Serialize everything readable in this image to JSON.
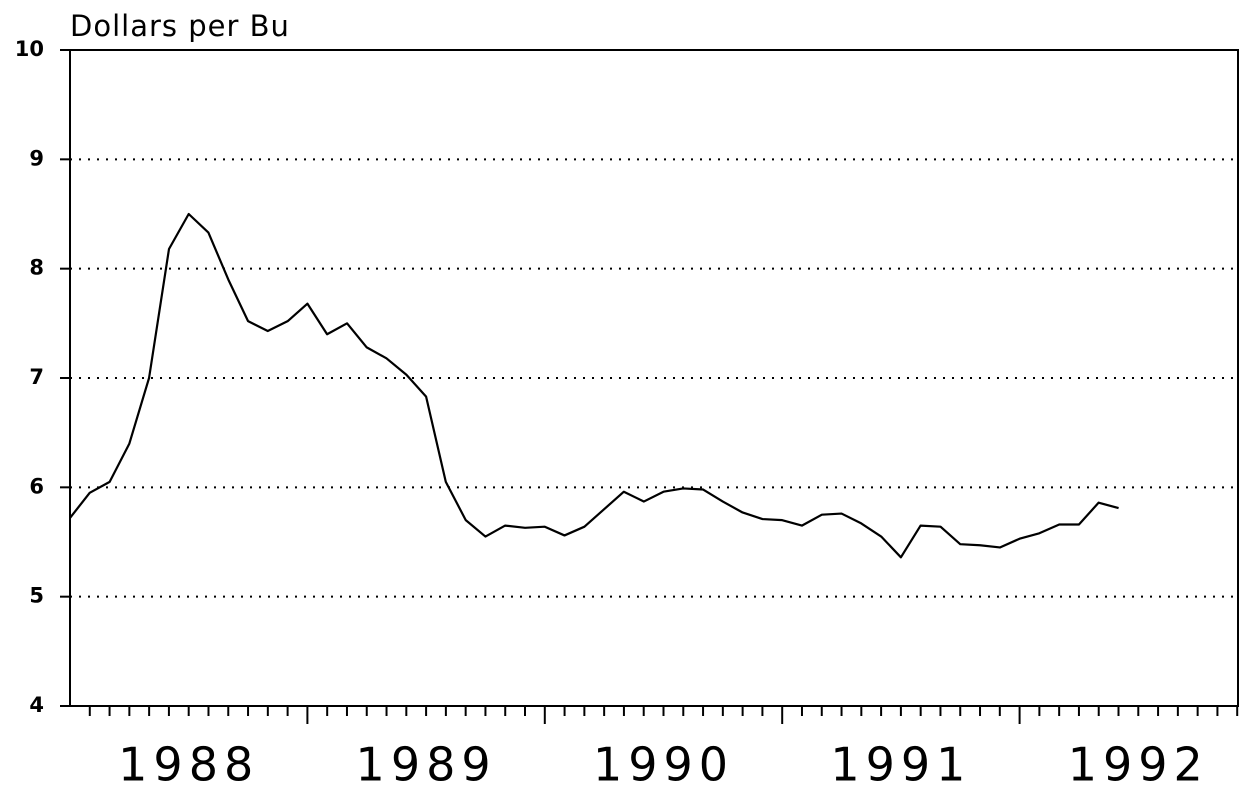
{
  "chart_data": {
    "type": "line",
    "title": "Dollars per Bu",
    "x": [
      1988,
      1988.083,
      1988.167,
      1988.25,
      1988.333,
      1988.417,
      1988.5,
      1988.583,
      1988.667,
      1988.75,
      1988.833,
      1988.917,
      1989,
      1989.083,
      1989.167,
      1989.25,
      1989.333,
      1989.417,
      1989.5,
      1989.583,
      1989.667,
      1989.75,
      1989.833,
      1989.917,
      1990,
      1990.083,
      1990.167,
      1990.25,
      1990.333,
      1990.417,
      1990.5,
      1990.583,
      1990.667,
      1990.75,
      1990.833,
      1990.917,
      1991,
      1991.083,
      1991.167,
      1991.25,
      1991.333,
      1991.417,
      1991.5,
      1991.583,
      1991.667,
      1991.75,
      1991.833,
      1991.917,
      1992,
      1992.083,
      1992.167,
      1992.25,
      1992.333,
      1992.417
    ],
    "series": [
      {
        "color": "#000000",
        "values": [
          5.72,
          5.95,
          6.05,
          6.4,
          7.0,
          8.18,
          8.5,
          8.33,
          7.9,
          7.52,
          7.43,
          7.52,
          7.68,
          7.4,
          7.5,
          7.28,
          7.18,
          7.03,
          6.83,
          6.05,
          5.7,
          5.55,
          5.65,
          5.63,
          5.64,
          5.56,
          5.64,
          5.8,
          5.96,
          5.87,
          5.96,
          5.99,
          5.98,
          5.87,
          5.77,
          5.71,
          5.7,
          5.65,
          5.75,
          5.76,
          5.67,
          5.55,
          5.36,
          5.65,
          5.64,
          5.48,
          5.47,
          5.45,
          5.53,
          5.58,
          5.66,
          5.66,
          5.86,
          5.81
        ]
      }
    ],
    "xlim": [
      1988,
      1992.92
    ],
    "xticks": [
      {
        "value": 1988.5,
        "label": "1988"
      },
      {
        "value": 1989.5,
        "label": "1989"
      },
      {
        "value": 1990.5,
        "label": "1990"
      },
      {
        "value": 1991.5,
        "label": "1991"
      },
      {
        "value": 1992.5,
        "label": "1992"
      }
    ],
    "ylim": [
      4,
      10
    ],
    "yticks": [
      4,
      5,
      6,
      7,
      8,
      9,
      10
    ],
    "grid": true
  }
}
